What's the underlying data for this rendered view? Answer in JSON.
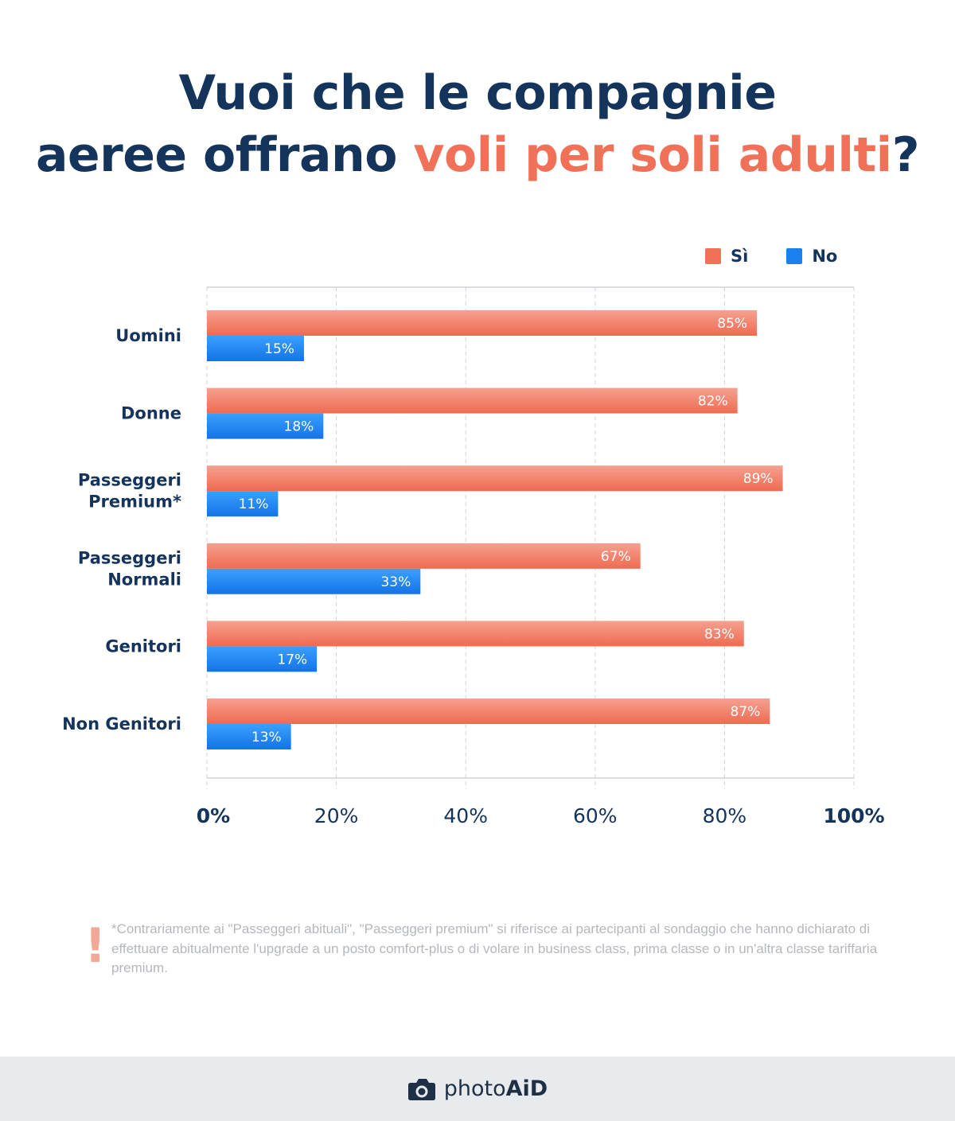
{
  "title": {
    "line1": "Vuoi che le compagnie",
    "line2_prefix": "aeree offrano ",
    "line2_highlight": "voli per soli adulti",
    "line2_suffix": "?"
  },
  "colors": {
    "si": "#f07158",
    "no": "#1a80ee",
    "text": "#15345c"
  },
  "chart_data": {
    "type": "bar",
    "orientation": "horizontal",
    "title": "Vuoi che le compagnie aeree offrano voli per soli adulti?",
    "categories": [
      [
        "Uomini"
      ],
      [
        "Donne"
      ],
      [
        "Passeggeri",
        "Premium*"
      ],
      [
        "Passeggeri",
        "Normali"
      ],
      [
        "Genitori"
      ],
      [
        "Non Genitori"
      ]
    ],
    "series": [
      {
        "name": "Sì",
        "values": [
          85,
          82,
          89,
          67,
          83,
          87
        ],
        "labels": [
          "85%",
          "82%",
          "89%",
          "67%",
          "83%",
          "87%"
        ]
      },
      {
        "name": "No",
        "values": [
          15,
          18,
          11,
          33,
          17,
          13
        ],
        "labels": [
          "15%",
          "18%",
          "11%",
          "33%",
          "17%",
          "13%"
        ]
      }
    ],
    "xlim": [
      0,
      100
    ],
    "xticks": [
      0,
      20,
      40,
      60,
      80,
      100
    ],
    "xtick_labels": [
      "0%",
      "20%",
      "40%",
      "60%",
      "80%",
      "100%"
    ],
    "grid": true,
    "legend": "top-right"
  },
  "legend": {
    "si_label": "Sì",
    "no_label": "No"
  },
  "footnote": {
    "mark": "!",
    "text": "*Contrariamente ai \"Passeggeri abituali\", \"Passeggeri premium\" si riferisce ai partecipanti al sondaggio che hanno dichiarato di effettuare abitualmente l'upgrade a un posto comfort-plus o di volare in business class, prima classe o in un'altra classe tariffaria premium."
  },
  "footer": {
    "brand_light": "photo",
    "brand_bold": "AiD",
    "icon": "camera-icon"
  }
}
